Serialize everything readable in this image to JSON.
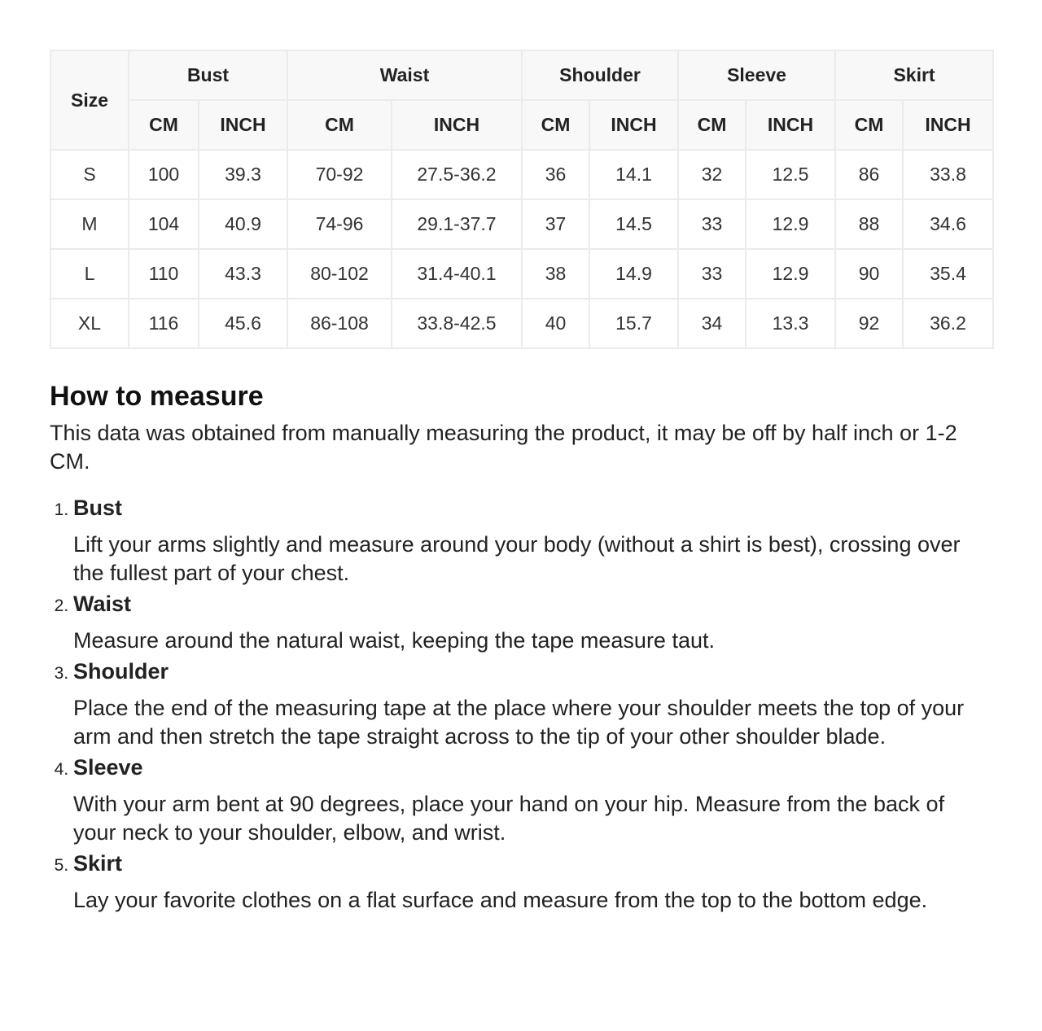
{
  "table": {
    "size_header": "Size",
    "groups": [
      "Bust",
      "Waist",
      "Shoulder",
      "Sleeve",
      "Skirt"
    ],
    "units": [
      "CM",
      "INCH"
    ],
    "rows": [
      [
        "S",
        "100",
        "39.3",
        "70-92",
        "27.5-36.2",
        "36",
        "14.1",
        "32",
        "12.5",
        "86",
        "33.8"
      ],
      [
        "M",
        "104",
        "40.9",
        "74-96",
        "29.1-37.7",
        "37",
        "14.5",
        "33",
        "12.9",
        "88",
        "34.6"
      ],
      [
        "L",
        "110",
        "43.3",
        "80-102",
        "31.4-40.1",
        "38",
        "14.9",
        "33",
        "12.9",
        "90",
        "35.4"
      ],
      [
        "XL",
        "116",
        "45.6",
        "86-108",
        "33.8-42.5",
        "40",
        "15.7",
        "34",
        "13.3",
        "92",
        "36.2"
      ]
    ]
  },
  "guide": {
    "title": "How to measure",
    "intro": "This data was obtained from manually measuring the product, it may be off by half inch or 1-2 CM.",
    "items": [
      {
        "title": "Bust",
        "desc": "Lift your arms slightly and measure around your body (without a shirt is best), crossing over the fullest part of your chest."
      },
      {
        "title": "Waist",
        "desc": "Measure around the natural waist, keeping the tape measure taut."
      },
      {
        "title": "Shoulder",
        "desc": "Place the end of the measuring tape at the place where your shoulder meets the top of your arm and then stretch the tape straight across to the tip of your other shoulder blade."
      },
      {
        "title": "Sleeve",
        "desc": "With your arm bent at 90 degrees, place your hand on your hip. Measure from the back of your neck to your shoulder, elbow, and wrist."
      },
      {
        "title": "Skirt",
        "desc": "Lay your favorite clothes on a flat surface and measure from the top to the bottom edge."
      }
    ]
  }
}
